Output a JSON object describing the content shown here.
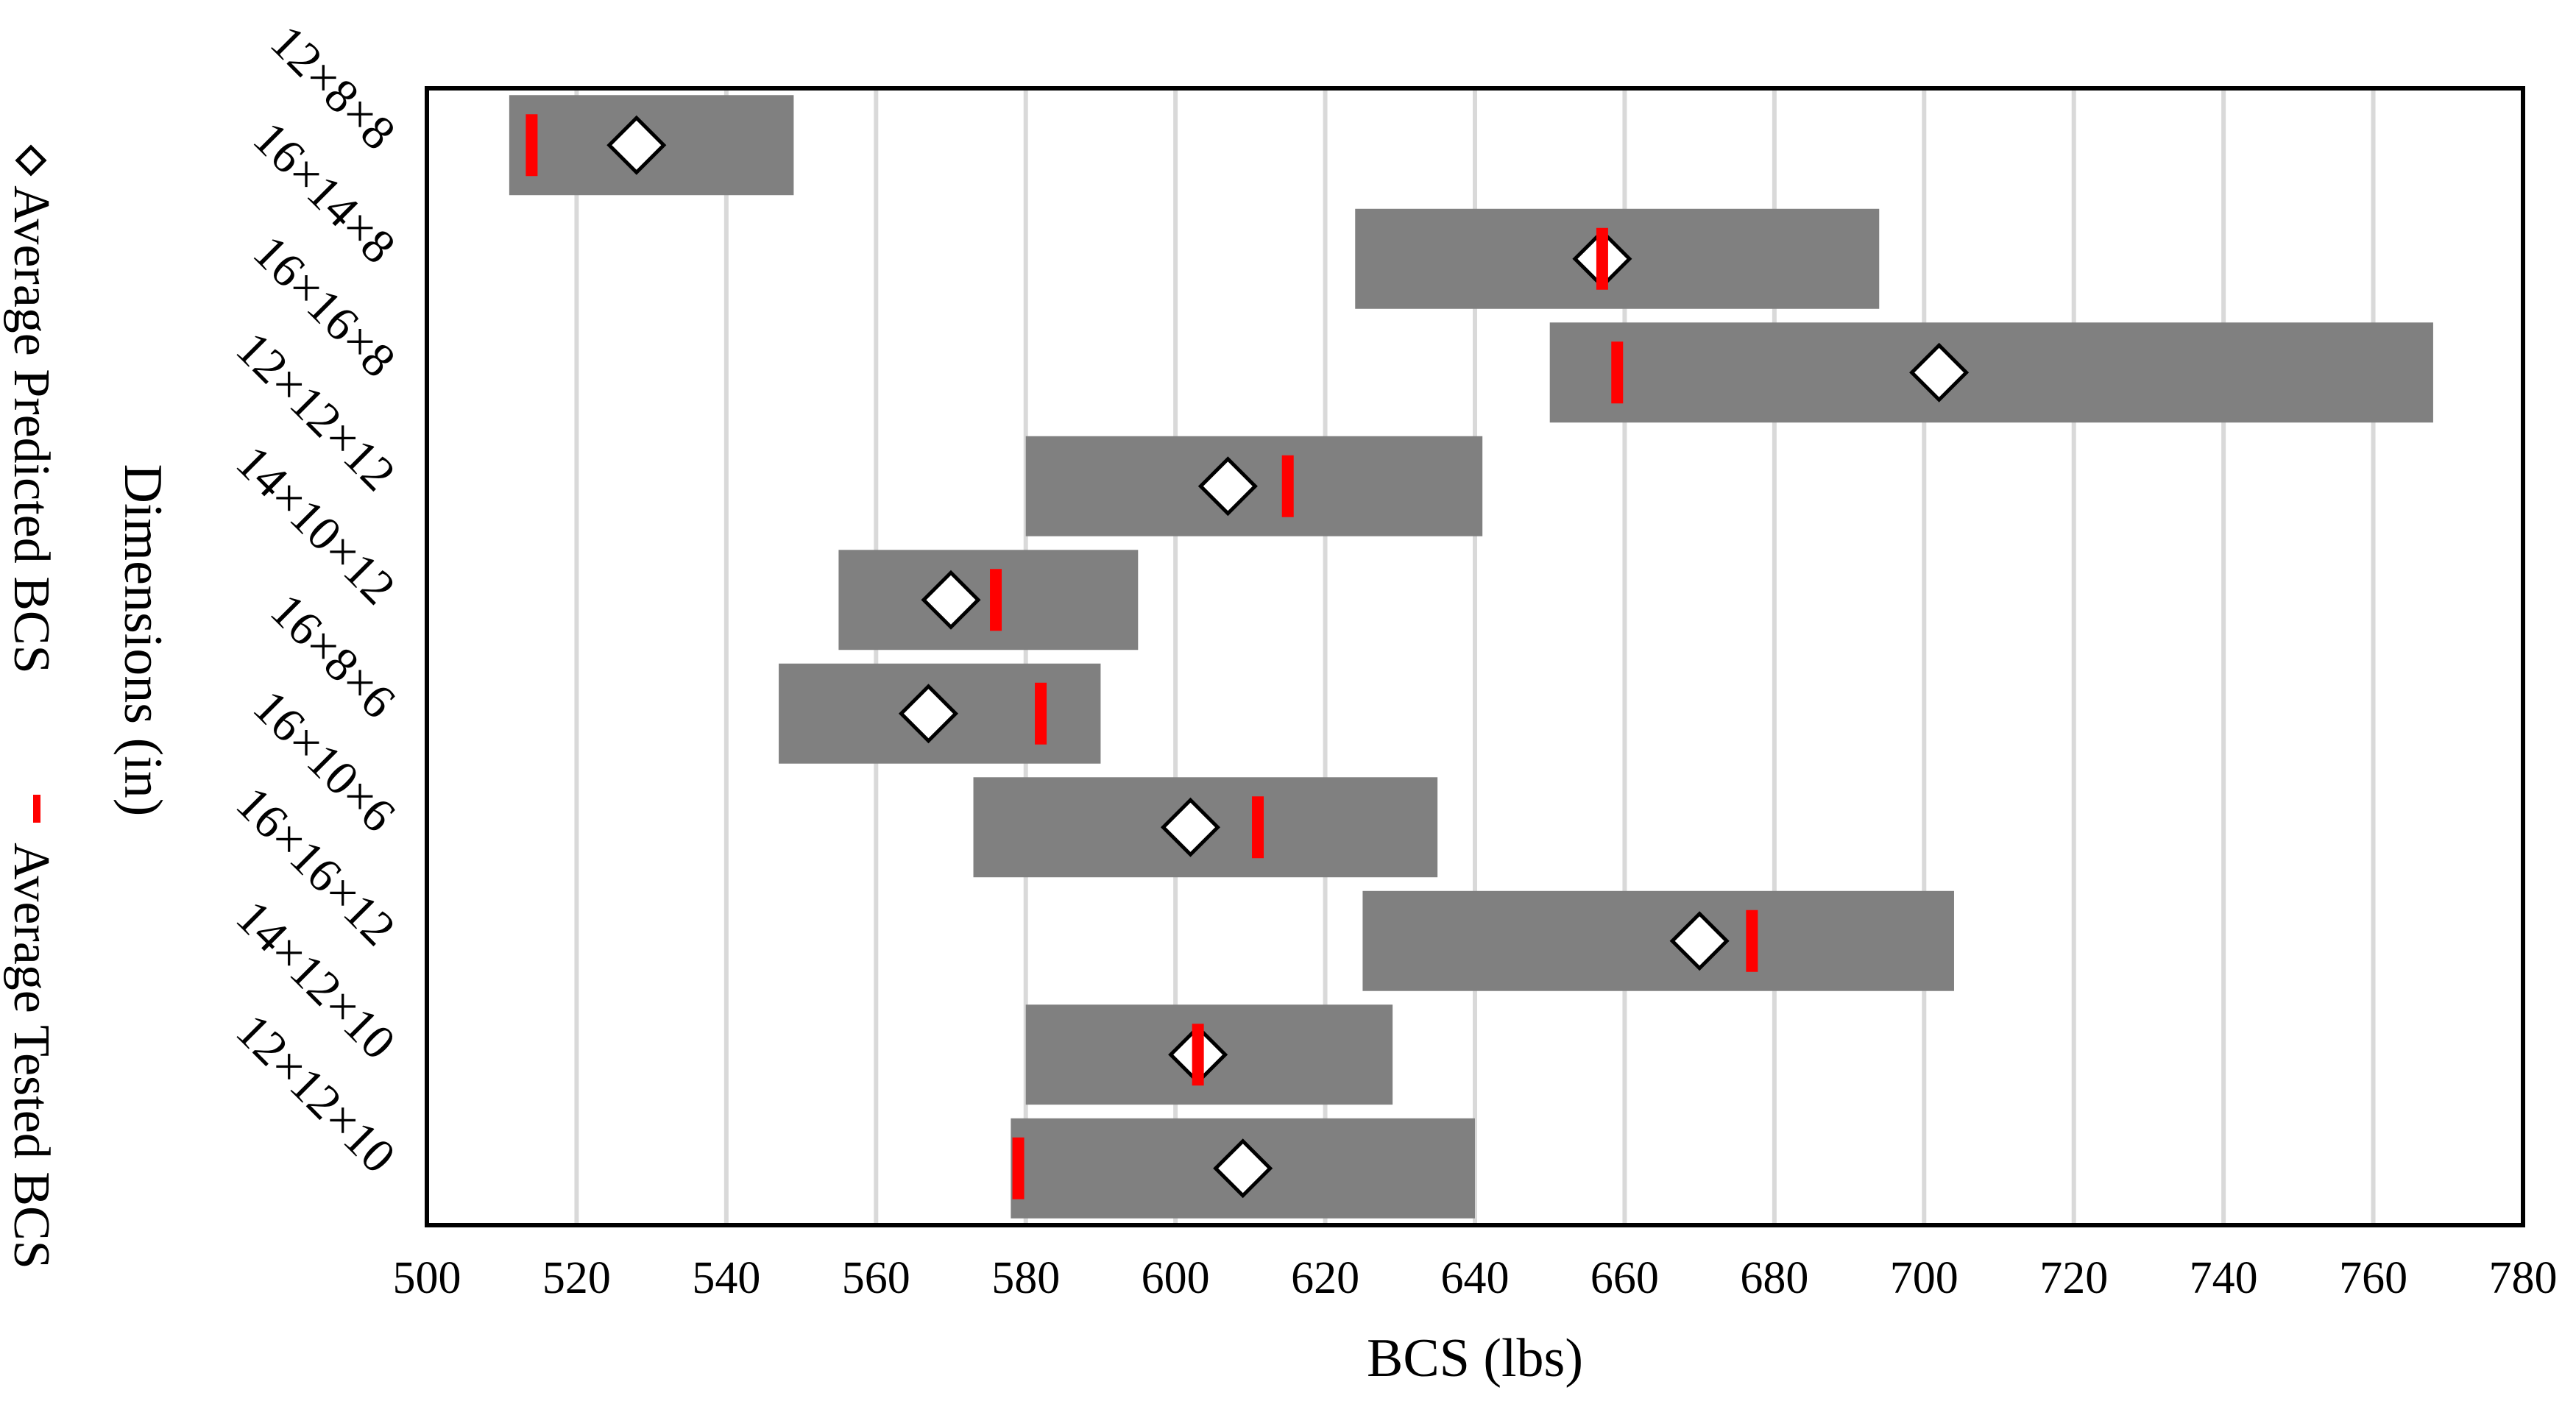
{
  "chart_data": {
    "type": "bar",
    "orientation": "horizontal-range",
    "xlabel": "BCS (lbs)",
    "ylabel": "Dimensions (in)",
    "xlim": [
      500,
      780
    ],
    "xticks": [
      500,
      520,
      540,
      560,
      580,
      600,
      620,
      640,
      660,
      680,
      700,
      720,
      740,
      760,
      780
    ],
    "grid": "vertical",
    "legend_position": "left, vertical",
    "legend": [
      {
        "label": "Average Predicted BCS",
        "marker": "diamond"
      },
      {
        "label": "Average Tested BCS",
        "marker": "red-dash"
      }
    ],
    "categories": [
      "12×8×8",
      "16×14×8",
      "16×16×8",
      "12×12×12",
      "14×10×12",
      "16×8×6",
      "16×10×6",
      "16×16×12",
      "14×12×10",
      "12×12×10"
    ],
    "ranges": [
      [
        511,
        549
      ],
      [
        624,
        694
      ],
      [
        650,
        768
      ],
      [
        580,
        641
      ],
      [
        555,
        595
      ],
      [
        547,
        590
      ],
      [
        573,
        635
      ],
      [
        625,
        704
      ],
      [
        580,
        629
      ],
      [
        578,
        640
      ]
    ],
    "predicted": [
      528,
      657,
      702,
      607,
      570,
      567,
      602,
      670,
      603,
      609
    ],
    "tested": [
      514,
      657,
      659,
      615,
      576,
      582,
      611,
      677,
      603,
      579
    ]
  },
  "colors": {
    "range_bar": "#808080",
    "tested_marker": "#ff0000",
    "predicted_marker_fill": "#ffffff",
    "grid": "#d9d9d9",
    "axis": "#000000"
  }
}
